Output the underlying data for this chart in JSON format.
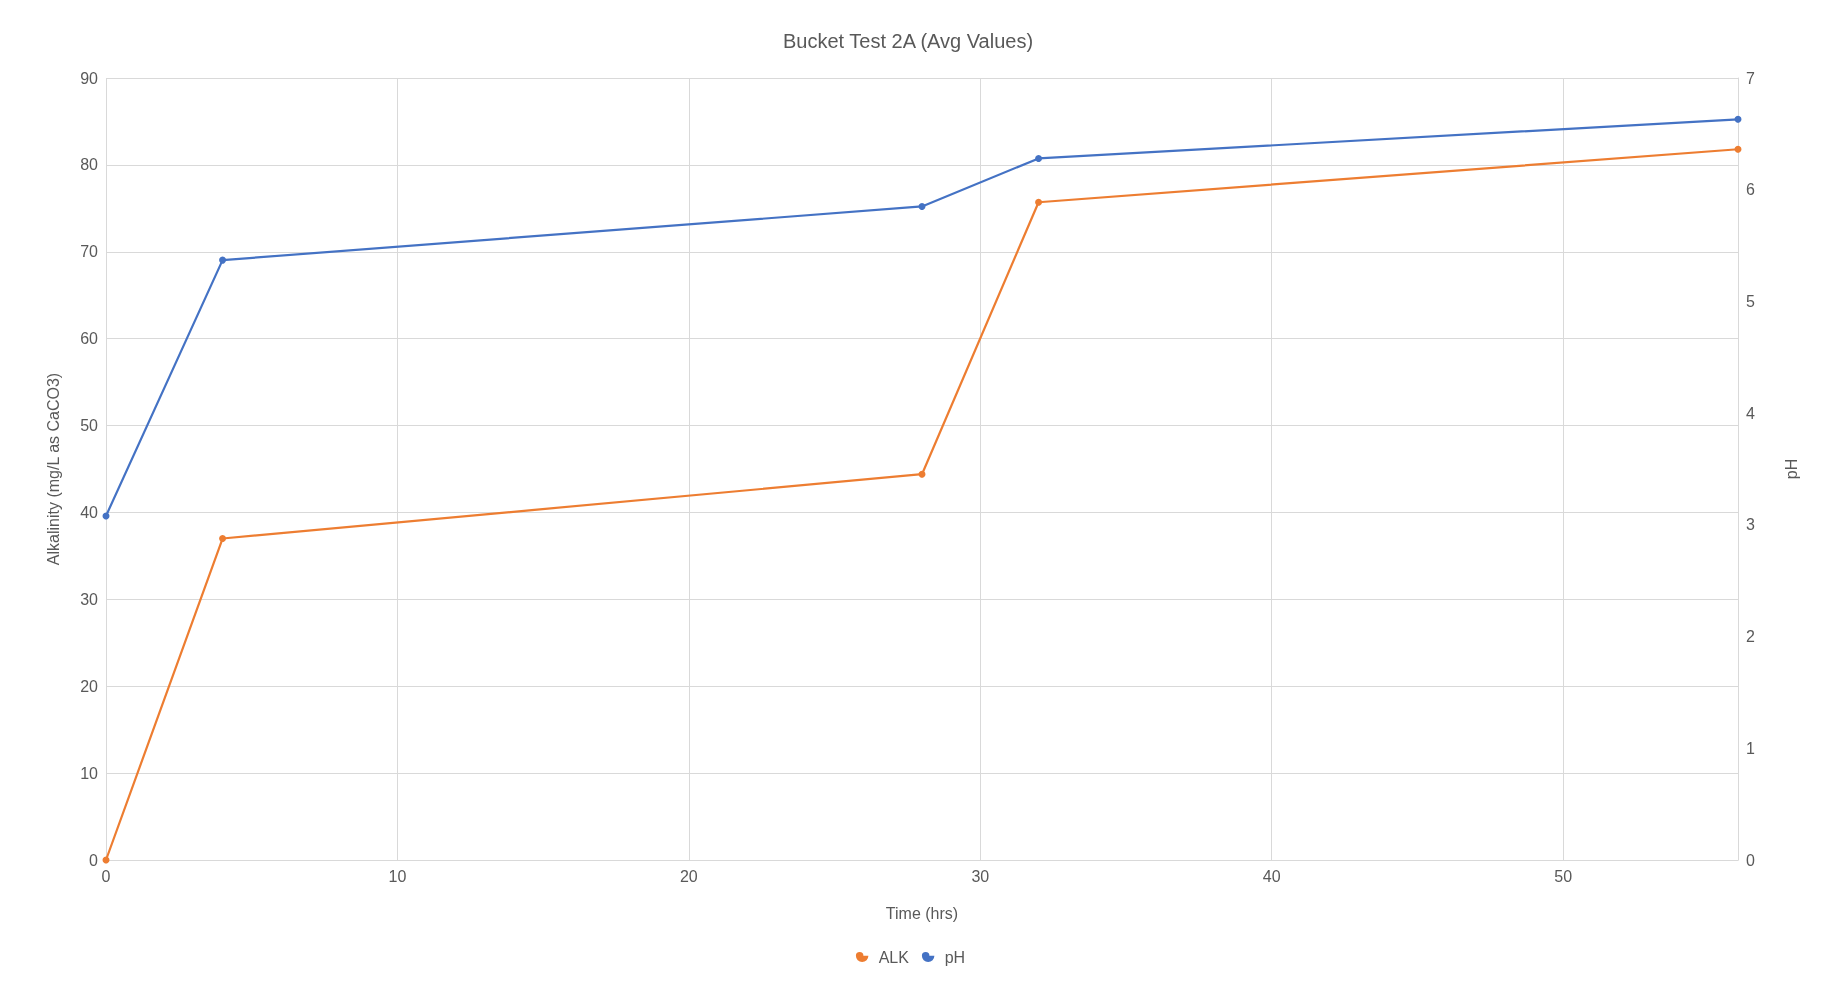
{
  "chart_data": {
    "type": "line",
    "title": "Bucket Test 2A (Avg Values)",
    "xlabel": "Time (hrs)",
    "ylabel": "Alkalinity (mg/L as CaCO3)",
    "y2label": "pH",
    "x": [
      0,
      4,
      28,
      32,
      56
    ],
    "series": [
      {
        "name": "ALK",
        "color": "#ed7d31",
        "values": [
          0,
          37.0,
          44.4,
          75.7,
          81.8
        ]
      },
      {
        "name": "pH",
        "color": "#4472c4",
        "axis": "y2",
        "values": [
          3.08,
          5.37,
          5.85,
          6.28,
          6.63
        ]
      }
    ],
    "xlim": [
      0,
      56
    ],
    "xticks": [
      0,
      10,
      20,
      30,
      40,
      50
    ],
    "ylim": [
      0,
      90
    ],
    "yticks": [
      0,
      10,
      20,
      30,
      40,
      50,
      60,
      70,
      80,
      90
    ],
    "y2lim": [
      0,
      7
    ],
    "y2ticks": [
      0,
      1,
      2,
      3,
      4,
      5,
      6,
      7
    ],
    "grid": true,
    "legend": "bottom",
    "marker": "circle",
    "line_style": "solid"
  }
}
